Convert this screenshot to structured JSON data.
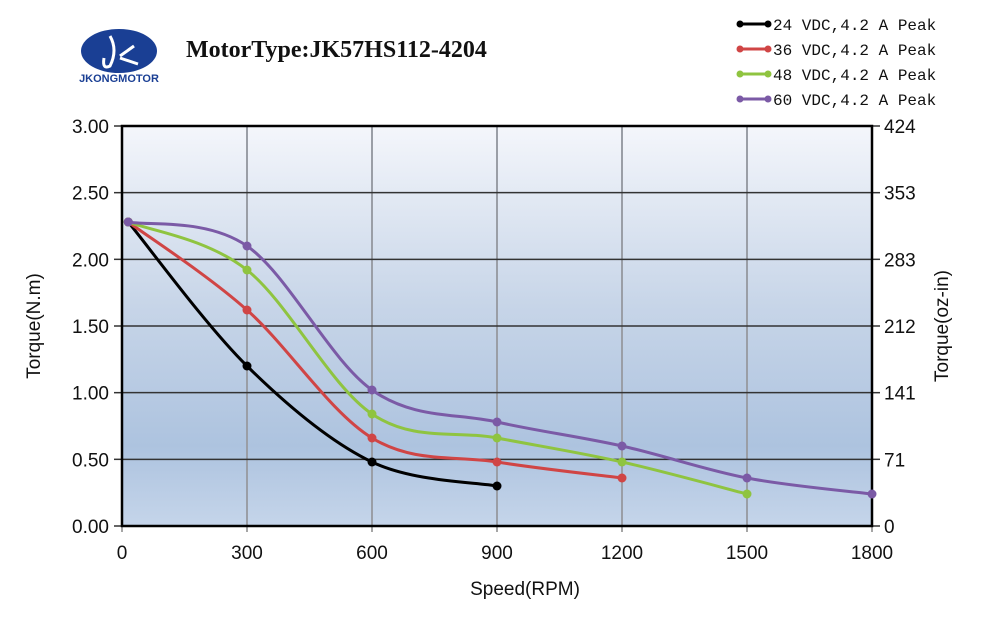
{
  "logo": {
    "brand": "JKONGMOTOR",
    "color": "#1a3f94"
  },
  "chart_data": {
    "type": "line",
    "title": "MotorType:JK57HS112-4204",
    "xlabel": "Speed(RPM)",
    "ylabel": "Torque(N.m)",
    "y2label": "Torque(oz-in)",
    "xlim": [
      0,
      1800
    ],
    "ylim": [
      0,
      3.0
    ],
    "xticks": [
      "0",
      "300",
      "600",
      "900",
      "1200",
      "1500",
      "1800"
    ],
    "yticks": [
      "0.00",
      "0.50",
      "1.00",
      "1.50",
      "2.00",
      "2.50",
      "3.00"
    ],
    "y2ticks": [
      "0",
      "71",
      "141",
      "212",
      "283",
      "353",
      "424"
    ],
    "grid": true,
    "legend_position": "top-right",
    "series": [
      {
        "name": "24 VDC,4.2 A Peak",
        "color": "#000000",
        "x": [
          15,
          300,
          600,
          900
        ],
        "y": [
          2.28,
          1.2,
          0.48,
          0.3
        ]
      },
      {
        "name": "36 VDC,4.2 A Peak",
        "color": "#d04545",
        "x": [
          15,
          300,
          600,
          900,
          1200
        ],
        "y": [
          2.28,
          1.62,
          0.66,
          0.48,
          0.36
        ]
      },
      {
        "name": "48 VDC,4.2 A Peak",
        "color": "#8fc440",
        "x": [
          15,
          300,
          600,
          900,
          1200,
          1500
        ],
        "y": [
          2.28,
          1.92,
          0.84,
          0.66,
          0.48,
          0.24
        ]
      },
      {
        "name": "60 VDC,4.2 A Peak",
        "color": "#7b5aa6",
        "x": [
          15,
          300,
          600,
          900,
          1200,
          1500,
          1800
        ],
        "y": [
          2.28,
          2.1,
          1.02,
          0.78,
          0.6,
          0.36,
          0.24
        ]
      }
    ]
  }
}
